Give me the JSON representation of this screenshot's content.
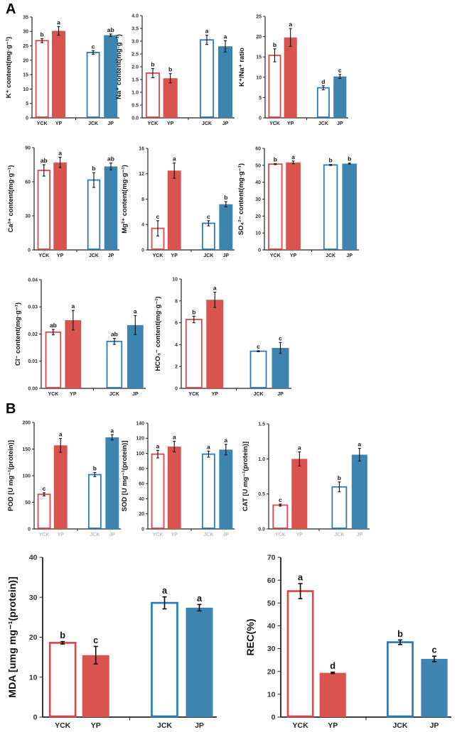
{
  "panel_labels": [
    "A",
    "B"
  ],
  "colors": {
    "red": "#d9534f",
    "red_outline": "#e0474c",
    "blue": "#3d85b0",
    "blue_outline": "#2b7bba",
    "axis": "#222222"
  },
  "chart_data": [
    {
      "type": "bar",
      "ylabel": "K⁺ content(mg·g⁻¹)",
      "categories": [
        "YCK",
        "YP",
        "JCK",
        "JP"
      ],
      "values": [
        26.8,
        30.2,
        22.7,
        28.7
      ],
      "errors": [
        0.7,
        1.5,
        0.6,
        0.4
      ],
      "letters": [
        "b",
        "a",
        "c",
        "ab"
      ],
      "ylim": [
        0,
        35
      ],
      "ticks": [
        "0",
        "5",
        "10",
        "15",
        "20",
        "25",
        "30",
        "35"
      ]
    },
    {
      "type": "bar",
      "ylabel": "Na⁺ content(mg·g⁻¹)",
      "categories": [
        "YCK",
        "YP",
        "JCK",
        "JP"
      ],
      "values": [
        1.75,
        1.55,
        3.05,
        2.8
      ],
      "errors": [
        0.18,
        0.18,
        0.18,
        0.22
      ],
      "letters": [
        "b",
        "b",
        "a",
        "a"
      ],
      "ylim": [
        0,
        4
      ],
      "ticks": [
        "0.0",
        "0.5",
        "1.0",
        "1.5",
        "2.0",
        "2.5",
        "3.0",
        "3.5",
        "4.0"
      ]
    },
    {
      "type": "bar",
      "ylabel": "K⁺/Na⁺ ratio",
      "categories": [
        "YCK",
        "YP",
        "JCK",
        "JP"
      ],
      "values": [
        15.4,
        19.8,
        7.4,
        10.2
      ],
      "errors": [
        1.6,
        2.2,
        0.5,
        0.5
      ],
      "letters": [
        "b",
        "a",
        "d",
        "c"
      ],
      "ylim": [
        0,
        25
      ],
      "ticks": [
        "0",
        "5",
        "10",
        "15",
        "20",
        "25"
      ]
    },
    {
      "type": "bar",
      "ylabel": "Ca²⁺ content(mg·g⁻¹)",
      "categories": [
        "YCK",
        "YP",
        "JCK",
        "JP"
      ],
      "values": [
        70,
        77,
        61.5,
        73.5
      ],
      "errors": [
        5,
        4.5,
        6.5,
        3
      ],
      "letters": [
        "ab",
        "a",
        "b",
        "ab"
      ],
      "ylim": [
        0,
        90
      ],
      "ticks": [
        "0",
        "30",
        "60",
        "90"
      ]
    },
    {
      "type": "bar",
      "ylabel": "Mg²⁺ content(mg·g⁻¹)",
      "categories": [
        "YCK",
        "YP",
        "JCK",
        "JP"
      ],
      "values": [
        3.4,
        12.5,
        4.2,
        7.2
      ],
      "errors": [
        1.2,
        1.2,
        0.4,
        0.4
      ],
      "letters": [
        "c",
        "a",
        "c",
        "b"
      ],
      "ylim": [
        0,
        16
      ],
      "ticks": [
        "0",
        "4",
        "8",
        "12",
        "16"
      ]
    },
    {
      "type": "bar",
      "ylabel": "SO₄²⁻ content(mg·g⁻¹)",
      "categories": [
        "YCK",
        "YP",
        "JCK",
        "JP"
      ],
      "values": [
        50.7,
        51.7,
        50.2,
        51
      ],
      "errors": [
        0.3,
        0.8,
        0.3,
        0.3
      ],
      "letters": [
        "b",
        "a",
        "b",
        "b"
      ],
      "ylim": [
        0,
        60
      ],
      "ticks": [
        "0",
        "10",
        "20",
        "30",
        "40",
        "50",
        "60"
      ]
    },
    {
      "type": "bar",
      "ylabel": "Cl⁻ content(mg·g⁻¹)",
      "categories": [
        "YCK",
        "YP",
        "JCK",
        "JP"
      ],
      "values": [
        0.0207,
        0.0251,
        0.0173,
        0.0233
      ],
      "errors": [
        0.001,
        0.0036,
        0.0011,
        0.0035
      ],
      "letters": [
        "ab",
        "a",
        "ab",
        "a"
      ],
      "ylim": [
        0,
        0.04
      ],
      "ticks": [
        "0.00",
        "0.01",
        "0.02",
        "0.03",
        "0.04"
      ]
    },
    {
      "type": "bar",
      "ylabel": "HCO₃⁻ content(mg·g⁻¹)",
      "categories": [
        "YCK",
        "YP",
        "JCK",
        "JP"
      ],
      "values": [
        6.3,
        8.1,
        3.4,
        3.7
      ],
      "errors": [
        0.3,
        0.7,
        0.05,
        0.5
      ],
      "letters": [
        "b",
        "a",
        "c",
        "c"
      ],
      "ylim": [
        0,
        10
      ],
      "ticks": [
        "0",
        "2",
        "4",
        "6",
        "8",
        "10"
      ]
    },
    {
      "type": "bar",
      "ylabel": "POD [U mg⁻¹(protein)]",
      "categories": [
        "YCK",
        "YP",
        "JCK",
        "JP"
      ],
      "values": [
        65,
        157,
        102,
        172
      ],
      "errors": [
        3,
        13,
        4,
        5
      ],
      "letters": [
        "c",
        "a",
        "b",
        "a"
      ],
      "ylim": [
        0,
        200
      ],
      "ticks": [
        "0",
        "50",
        "100",
        "150",
        "200"
      ]
    },
    {
      "type": "bar",
      "ylabel": "SOD [U mg⁻¹(protein)]",
      "categories": [
        "YCK",
        "YP",
        "JCK",
        "JP"
      ],
      "values": [
        99,
        109,
        99,
        105
      ],
      "errors": [
        5,
        7,
        4,
        7
      ],
      "letters": [
        "a",
        "a",
        "a",
        "a"
      ],
      "ylim": [
        0,
        140
      ],
      "ticks": [
        "0",
        "20",
        "40",
        "60",
        "80",
        "100",
        "120",
        "140"
      ]
    },
    {
      "type": "bar",
      "ylabel": "CAT [U mg⁻¹(protein)]",
      "categories": [
        "YCK",
        "YP",
        "JCK",
        "JP"
      ],
      "values": [
        0.34,
        1.0,
        0.6,
        1.06
      ],
      "errors": [
        0.015,
        0.1,
        0.07,
        0.09
      ],
      "letters": [
        "c",
        "a",
        "b",
        "a"
      ],
      "ylim": [
        0,
        1.5
      ],
      "ticks": [
        "0.0",
        "0.5",
        "1.0",
        "1.5"
      ]
    },
    {
      "type": "bar",
      "ylabel": "MDA [umg mg⁻¹(protein)]",
      "categories": [
        "YCK",
        "YP",
        "JCK",
        "JP"
      ],
      "values": [
        18.6,
        15.5,
        28.6,
        27.4
      ],
      "errors": [
        0.3,
        2.2,
        1.5,
        0.8
      ],
      "letters": [
        "b",
        "c",
        "a",
        "a"
      ],
      "ylim": [
        0,
        40
      ],
      "ticks": [
        "0",
        "10",
        "20",
        "30",
        "40"
      ]
    },
    {
      "type": "bar",
      "ylabel": "REC(%)",
      "categories": [
        "YCK",
        "YP",
        "JCK",
        "JP"
      ],
      "values": [
        55.2,
        19.4,
        32.8,
        25.5
      ],
      "errors": [
        3.3,
        0.3,
        1.0,
        1.2
      ],
      "letters": [
        "a",
        "d",
        "b",
        "c"
      ],
      "ylim": [
        0,
        70
      ],
      "ticks": [
        "0",
        "10",
        "20",
        "30",
        "40",
        "50",
        "60",
        "70"
      ]
    }
  ]
}
